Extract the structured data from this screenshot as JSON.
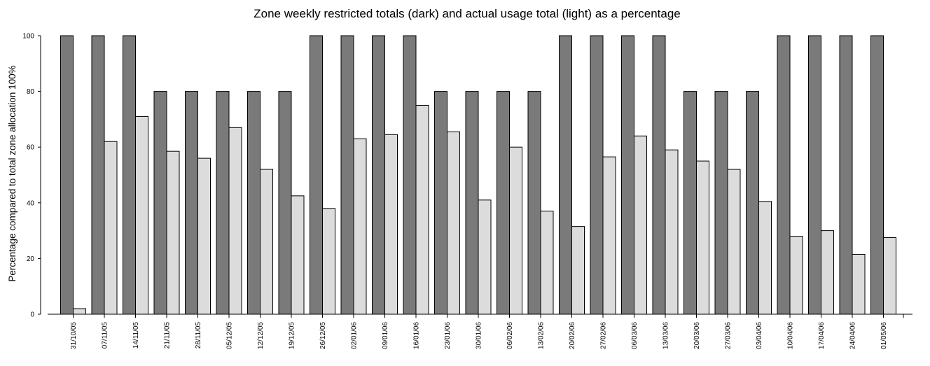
{
  "chart_data": {
    "type": "bar",
    "title": "Zone weekly restricted totals (dark) and actual usage total (light) as a percentage",
    "xlabel": "",
    "ylabel": "Percentage compared to total zone allocation 100%",
    "ylim": [
      0,
      100
    ],
    "yticks": [
      0,
      20,
      40,
      60,
      80,
      100
    ],
    "grid": false,
    "categories": [
      "31/10/05",
      "07/11/05",
      "14/11/05",
      "21/11/05",
      "28/11/05",
      "05/12/05",
      "12/12/05",
      "19/12/05",
      "26/12/05",
      "02/01/06",
      "09/01/06",
      "16/01/06",
      "23/01/06",
      "30/01/06",
      "06/02/06",
      "13/02/06",
      "20/02/06",
      "27/02/06",
      "06/03/06",
      "13/03/06",
      "20/03/06",
      "27/03/06",
      "03/04/06",
      "10/04/06",
      "17/04/06",
      "24/04/06",
      "01/05/06"
    ],
    "series": [
      {
        "colorRole": "dark",
        "color": "#7a7a7a",
        "values": [
          100,
          100,
          100,
          80,
          80,
          80,
          80,
          80,
          100,
          100,
          100,
          100,
          80,
          80,
          80,
          80,
          100,
          100,
          100,
          100,
          80,
          80,
          80,
          100,
          100,
          100,
          100
        ]
      },
      {
        "colorRole": "light",
        "color": "#dcdcdc",
        "values": [
          2,
          62,
          71,
          58.5,
          56,
          67,
          52,
          42.5,
          38,
          63,
          64.5,
          75,
          65.5,
          41,
          60,
          37,
          31.5,
          56.5,
          64,
          59,
          55,
          52,
          40.5,
          28,
          30,
          21.5,
          27.5
        ]
      }
    ]
  }
}
